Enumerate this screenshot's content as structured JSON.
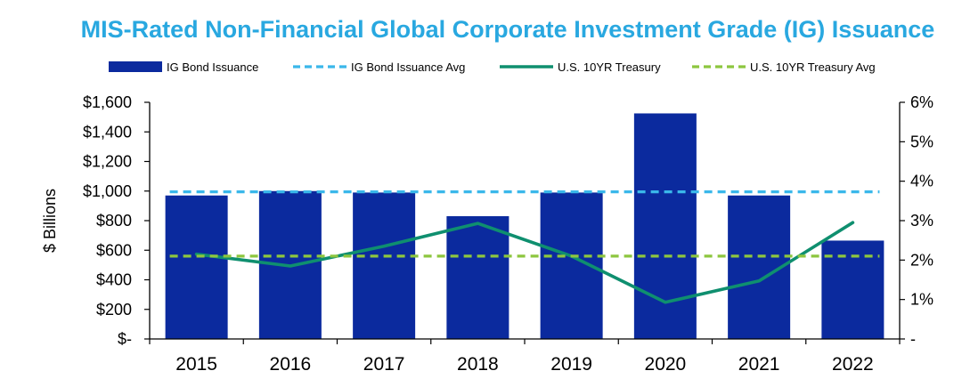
{
  "chart_data": {
    "type": "bar",
    "title": "MIS-Rated Non-Financial Global Corporate Investment Grade (IG) Issuance",
    "ylabel": "$ Billions",
    "categories": [
      "2015",
      "2016",
      "2017",
      "2018",
      "2019",
      "2020",
      "2021",
      "2022"
    ],
    "ylim": [
      0,
      1600
    ],
    "y_ticks": [
      0,
      200,
      400,
      600,
      800,
      1000,
      1200,
      1400,
      1600
    ],
    "y_tick_labels": [
      "$-",
      "$200",
      "$400",
      "$600",
      "$800",
      "$1,000",
      "$1,200",
      "$1,400",
      "$1,600"
    ],
    "y2lim": [
      0,
      6
    ],
    "y2_ticks": [
      0,
      1,
      2,
      3,
      4,
      5,
      6
    ],
    "y2_tick_labels": [
      "-",
      "1%",
      "2%",
      "3%",
      "4%",
      "5%",
      "6%"
    ],
    "legend_position": "top",
    "grid": false,
    "series": [
      {
        "name": "IG Bond Issuance",
        "kind": "bar",
        "axis": "left",
        "color": "#0b2a9e",
        "values": [
          970,
          1000,
          990,
          830,
          990,
          1525,
          970,
          665
        ]
      },
      {
        "name": "IG Bond Issuance Avg",
        "kind": "dashed-line",
        "axis": "left",
        "color": "#3ab7ea",
        "values": [
          995,
          995,
          995,
          995,
          995,
          995,
          995,
          995
        ]
      },
      {
        "name": "U.S. 10YR Treasury",
        "kind": "line",
        "axis": "right",
        "color": "#0f8f6f",
        "values": [
          2.15,
          1.85,
          2.35,
          2.93,
          2.1,
          0.93,
          1.47,
          2.95
        ]
      },
      {
        "name": "U.S. 10YR Treasury Avg",
        "kind": "dashed-line",
        "axis": "right",
        "color": "#8dc63f",
        "values": [
          2.1,
          2.1,
          2.1,
          2.1,
          2.1,
          2.1,
          2.1,
          2.1
        ]
      }
    ]
  }
}
